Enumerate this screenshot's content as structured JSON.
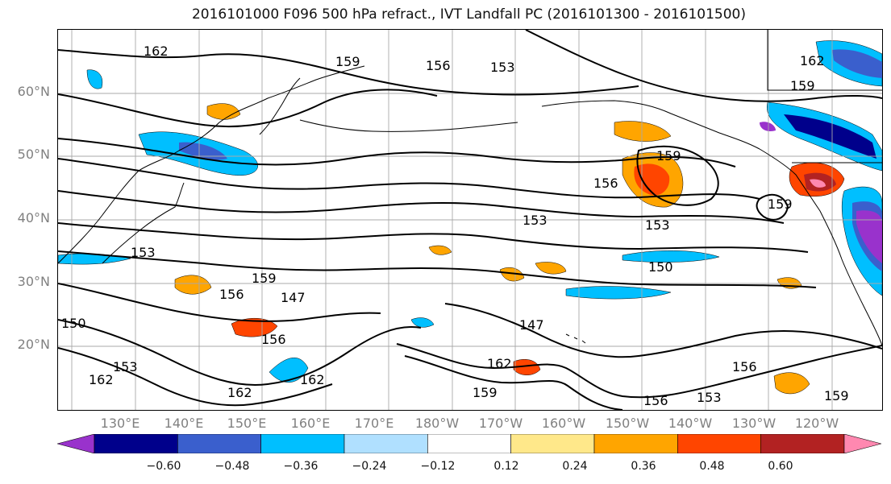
{
  "title": "2016101000 F096 500 hPa refract., IVT Landfall PC (2016101300 - 2016101500)",
  "lat_labels": [
    "60°N",
    "50°N",
    "40°N",
    "30°N",
    "20°N"
  ],
  "lon_labels": [
    "130°E",
    "140°E",
    "150°E",
    "160°E",
    "170°E",
    "180°W",
    "170°W",
    "160°W",
    "150°W",
    "140°W",
    "130°W",
    "120°W"
  ],
  "contour_labels": [
    "162",
    "159",
    "156",
    "153",
    "150",
    "147"
  ],
  "colorbar": {
    "ticks": [
      "−0.60",
      "−0.48",
      "−0.36",
      "−0.24",
      "−0.12",
      "0.12",
      "0.24",
      "0.36",
      "0.48",
      "0.60"
    ],
    "colors": [
      "#9932cc",
      "#00008b",
      "#3a5fcd",
      "#00bfff",
      "#b0e0ff",
      "#ffffff",
      "#ffe88a",
      "#ffa500",
      "#ff4500",
      "#b22222",
      "#ff88b0"
    ]
  }
}
